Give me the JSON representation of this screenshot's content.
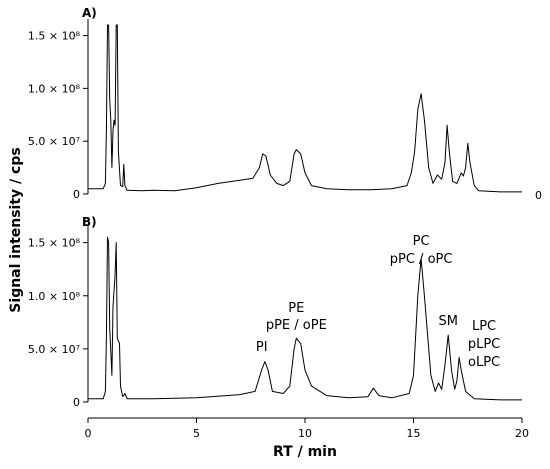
{
  "chart_data": {
    "type": "line",
    "ylabel": "Signal intensity / cps",
    "xlabel": "RT / min",
    "xlim": [
      0,
      20
    ],
    "x_ticks": [
      "0",
      "5",
      "10",
      "15",
      "20"
    ],
    "y_ticks": [
      "0",
      "5.0 × 10⁷",
      "1.0 × 10⁸",
      "1.5 × 10⁸"
    ],
    "panels": [
      {
        "label": "A)",
        "right_label": "0",
        "ylim": [
          0,
          160000000
        ],
        "points": [
          [
            0.0,
            5000000
          ],
          [
            0.7,
            5000000
          ],
          [
            0.8,
            10000000
          ],
          [
            0.85,
            60000000
          ],
          [
            0.9,
            160000000
          ],
          [
            0.95,
            160000000
          ],
          [
            1.0,
            90000000
          ],
          [
            1.05,
            70000000
          ],
          [
            1.1,
            25000000
          ],
          [
            1.15,
            60000000
          ],
          [
            1.2,
            70000000
          ],
          [
            1.25,
            65000000
          ],
          [
            1.3,
            160000000
          ],
          [
            1.35,
            160000000
          ],
          [
            1.4,
            40000000
          ],
          [
            1.5,
            8000000
          ],
          [
            1.6,
            7000000
          ],
          [
            1.65,
            28000000
          ],
          [
            1.7,
            8000000
          ],
          [
            1.8,
            3500000
          ],
          [
            2.5,
            3000000
          ],
          [
            3.0,
            3500000
          ],
          [
            4.0,
            3000000
          ],
          [
            5.0,
            6000000
          ],
          [
            6.0,
            10000000
          ],
          [
            7.0,
            13000000
          ],
          [
            7.6,
            15000000
          ],
          [
            7.9,
            25000000
          ],
          [
            8.05,
            38000000
          ],
          [
            8.2,
            36000000
          ],
          [
            8.4,
            18000000
          ],
          [
            8.7,
            10000000
          ],
          [
            9.0,
            8000000
          ],
          [
            9.3,
            12000000
          ],
          [
            9.5,
            38000000
          ],
          [
            9.6,
            42000000
          ],
          [
            9.8,
            38000000
          ],
          [
            10.0,
            20000000
          ],
          [
            10.3,
            8000000
          ],
          [
            11.0,
            5000000
          ],
          [
            12.0,
            4000000
          ],
          [
            13.0,
            4000000
          ],
          [
            14.0,
            5000000
          ],
          [
            14.7,
            8000000
          ],
          [
            14.9,
            20000000
          ],
          [
            15.05,
            40000000
          ],
          [
            15.2,
            80000000
          ],
          [
            15.35,
            95000000
          ],
          [
            15.5,
            70000000
          ],
          [
            15.7,
            25000000
          ],
          [
            15.9,
            10000000
          ],
          [
            16.1,
            18000000
          ],
          [
            16.3,
            14000000
          ],
          [
            16.45,
            30000000
          ],
          [
            16.55,
            65000000
          ],
          [
            16.65,
            40000000
          ],
          [
            16.8,
            12000000
          ],
          [
            17.0,
            10000000
          ],
          [
            17.2,
            20000000
          ],
          [
            17.3,
            17000000
          ],
          [
            17.4,
            25000000
          ],
          [
            17.5,
            48000000
          ],
          [
            17.6,
            30000000
          ],
          [
            17.8,
            8000000
          ],
          [
            18.0,
            3000000
          ],
          [
            19.0,
            2000000
          ],
          [
            20.0,
            2000000
          ]
        ]
      },
      {
        "label": "B)",
        "ylim": [
          0,
          160000000
        ],
        "points": [
          [
            0.0,
            3000000
          ],
          [
            0.7,
            3000000
          ],
          [
            0.8,
            10000000
          ],
          [
            0.85,
            60000000
          ],
          [
            0.9,
            155000000
          ],
          [
            0.95,
            150000000
          ],
          [
            1.0,
            70000000
          ],
          [
            1.1,
            25000000
          ],
          [
            1.15,
            90000000
          ],
          [
            1.25,
            120000000
          ],
          [
            1.3,
            150000000
          ],
          [
            1.35,
            60000000
          ],
          [
            1.45,
            55000000
          ],
          [
            1.5,
            15000000
          ],
          [
            1.6,
            5000000
          ],
          [
            1.7,
            8000000
          ],
          [
            1.8,
            3000000
          ],
          [
            3.0,
            3000000
          ],
          [
            5.0,
            4000000
          ],
          [
            7.0,
            7000000
          ],
          [
            7.7,
            10000000
          ],
          [
            8.0,
            30000000
          ],
          [
            8.15,
            38000000
          ],
          [
            8.3,
            30000000
          ],
          [
            8.5,
            10000000
          ],
          [
            9.0,
            8000000
          ],
          [
            9.3,
            15000000
          ],
          [
            9.5,
            50000000
          ],
          [
            9.6,
            60000000
          ],
          [
            9.8,
            55000000
          ],
          [
            10.0,
            30000000
          ],
          [
            10.3,
            15000000
          ],
          [
            11.0,
            6000000
          ],
          [
            12.0,
            4000000
          ],
          [
            12.9,
            5000000
          ],
          [
            13.15,
            13000000
          ],
          [
            13.4,
            6000000
          ],
          [
            14.0,
            4000000
          ],
          [
            14.8,
            8000000
          ],
          [
            15.0,
            25000000
          ],
          [
            15.2,
            100000000
          ],
          [
            15.35,
            135000000
          ],
          [
            15.5,
            100000000
          ],
          [
            15.8,
            25000000
          ],
          [
            16.0,
            10000000
          ],
          [
            16.15,
            18000000
          ],
          [
            16.3,
            12000000
          ],
          [
            16.45,
            35000000
          ],
          [
            16.6,
            63000000
          ],
          [
            16.75,
            30000000
          ],
          [
            16.9,
            12000000
          ],
          [
            17.0,
            20000000
          ],
          [
            17.1,
            42000000
          ],
          [
            17.2,
            30000000
          ],
          [
            17.4,
            10000000
          ],
          [
            17.8,
            3000000
          ],
          [
            19.0,
            2000000
          ],
          [
            20.0,
            2000000
          ]
        ]
      }
    ],
    "annotations": [
      {
        "id": "pi",
        "x": 8.1,
        "lines": [
          "PI"
        ]
      },
      {
        "id": "pe",
        "x": 9.6,
        "lines": [
          "PE",
          "pPE / oPE"
        ]
      },
      {
        "id": "pc",
        "x": 15.35,
        "lines": [
          "PC",
          "pPC / oPC"
        ]
      },
      {
        "id": "sm",
        "x": 16.6,
        "lines": [
          "SM"
        ]
      },
      {
        "id": "lpc",
        "x": 17.1,
        "lines": [
          "LPC",
          "pLPC",
          "oLPC"
        ]
      }
    ]
  }
}
